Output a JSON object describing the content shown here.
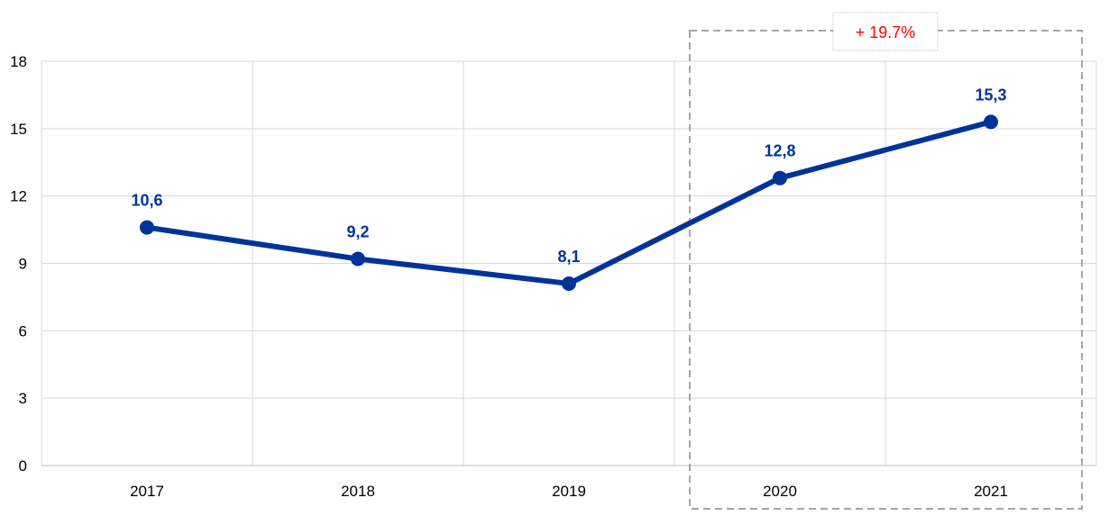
{
  "chart_data": {
    "type": "line",
    "categories": [
      "2017",
      "2018",
      "2019",
      "2020",
      "2021"
    ],
    "series": [
      {
        "values": [
          10.6,
          9.2,
          8.1,
          12.8,
          15.3
        ],
        "labels": [
          "10,6",
          "9,2",
          "8,1",
          "12,8",
          "15,3"
        ]
      }
    ],
    "yticks": [
      "0",
      "3",
      "6",
      "9",
      "12",
      "15",
      "18"
    ],
    "ylim": [
      0,
      18
    ],
    "grid": true,
    "title": "",
    "xlabel": "",
    "ylabel": "",
    "annotation": {
      "text": "+ 19.7%",
      "highlight_categories": [
        "2020",
        "2021"
      ]
    },
    "colors": {
      "line": "#003399",
      "annotation": "#ff0000",
      "grid": "#d9d9d9",
      "highlight_box": "#a6a6a6"
    }
  }
}
